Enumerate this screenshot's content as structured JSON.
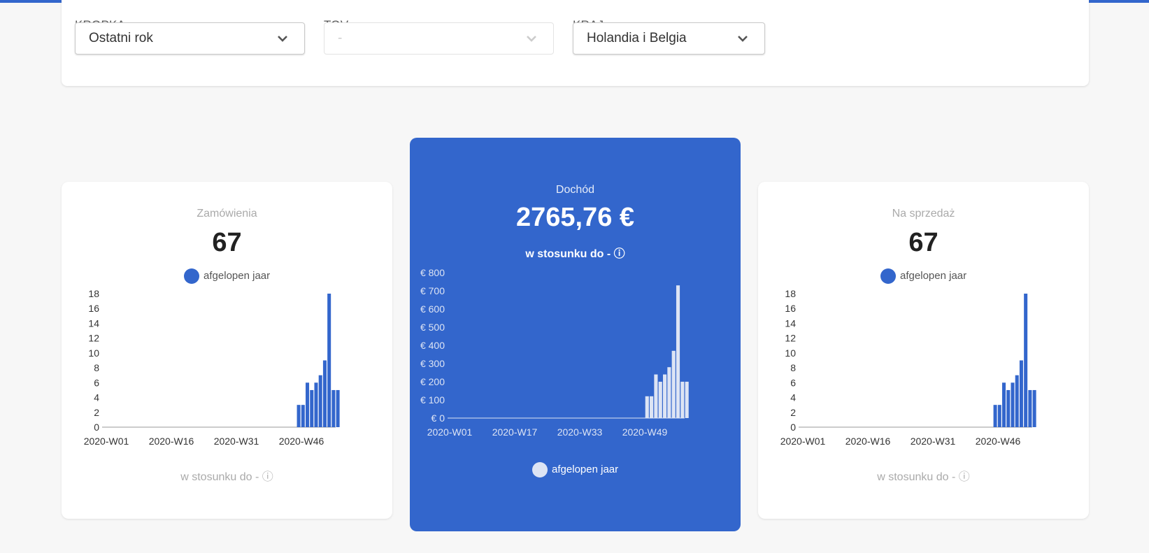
{
  "filters": [
    {
      "label": "KROPKA",
      "value": "Ostatni rok",
      "disabled": false
    },
    {
      "label": "TOV",
      "value": "-",
      "disabled": true
    },
    {
      "label": "KRAJ",
      "value": "Holandia i Belgia",
      "disabled": false
    }
  ],
  "cards": {
    "orders": {
      "title": "Zamówienia",
      "value": "67",
      "legend": "afgelopen jaar",
      "compare": "w stosunku do - ⓘ"
    },
    "revenue": {
      "title": "Dochód",
      "value": "2765,76 €",
      "legend": "afgelopen jaar",
      "compare": "w stosunku do - ⓘ"
    },
    "sales": {
      "title": "Na sprzedaż",
      "value": "67",
      "legend": "afgelopen jaar",
      "compare": "w stosunku do - ⓘ"
    }
  },
  "colors": {
    "accent": "#3366cc",
    "light_bar": "#dde4f4"
  },
  "chart_data": [
    {
      "type": "bar",
      "x_tick_labels": [
        "2020-W01",
        "2020-W16",
        "2020-W31",
        "2020-W46"
      ],
      "series": [
        {
          "name": "afgelopen jaar",
          "x_start_week": 45,
          "values": [
            3,
            3,
            6,
            5,
            6,
            7,
            9,
            18,
            5,
            5
          ]
        }
      ],
      "y_ticks": [
        0,
        2,
        4,
        6,
        8,
        10,
        12,
        14,
        16,
        18
      ],
      "ylim": [
        0,
        18
      ],
      "weeks": 53
    },
    {
      "type": "bar",
      "x_tick_labels": [
        "2020-W01",
        "2020-W17",
        "2020-W33",
        "2020-W49"
      ],
      "series": [
        {
          "name": "afgelopen jaar",
          "x_start_week": 45,
          "values": [
            120,
            120,
            240,
            200,
            240,
            280,
            370,
            730,
            200,
            200
          ]
        }
      ],
      "y_ticks": [
        "€ 0",
        "€ 100",
        "€ 200",
        "€ 300",
        "€ 400",
        "€ 500",
        "€ 600",
        "€ 700",
        "€ 800"
      ],
      "ylim": [
        0,
        800
      ],
      "weeks": 53
    },
    {
      "type": "bar",
      "x_tick_labels": [
        "2020-W01",
        "2020-W16",
        "2020-W31",
        "2020-W46"
      ],
      "series": [
        {
          "name": "afgelopen jaar",
          "x_start_week": 45,
          "values": [
            3,
            3,
            6,
            5,
            6,
            7,
            9,
            18,
            5,
            5
          ]
        }
      ],
      "y_ticks": [
        0,
        2,
        4,
        6,
        8,
        10,
        12,
        14,
        16,
        18
      ],
      "ylim": [
        0,
        18
      ],
      "weeks": 53
    }
  ]
}
